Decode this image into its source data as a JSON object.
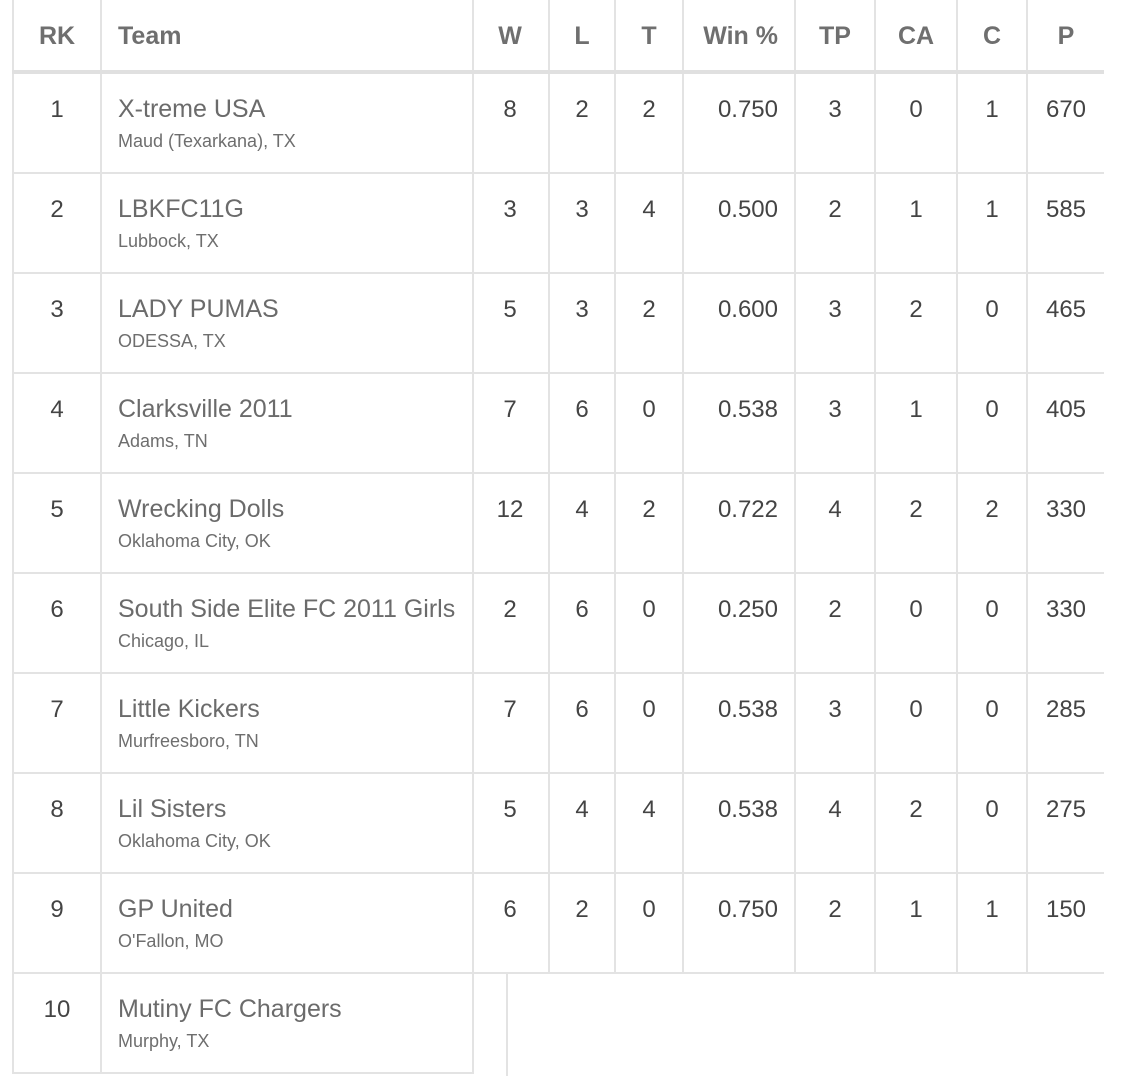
{
  "headers": {
    "rank": "RK",
    "team": "Team",
    "w": "W",
    "l": "L",
    "t": "T",
    "win_pct": "Win %",
    "tp": "TP",
    "ca": "CA",
    "c": "C",
    "p": "P"
  },
  "rows": [
    {
      "rank": "1",
      "name": "X-treme USA",
      "location": "Maud (Texarkana), TX",
      "w": "8",
      "l": "2",
      "t": "2",
      "win_pct": "0.750",
      "tp": "3",
      "ca": "0",
      "c": "1",
      "p": "670"
    },
    {
      "rank": "2",
      "name": "LBKFC11G",
      "location": "Lubbock, TX",
      "w": "3",
      "l": "3",
      "t": "4",
      "win_pct": "0.500",
      "tp": "2",
      "ca": "1",
      "c": "1",
      "p": "585"
    },
    {
      "rank": "3",
      "name": "LADY PUMAS",
      "location": "ODESSA, TX",
      "w": "5",
      "l": "3",
      "t": "2",
      "win_pct": "0.600",
      "tp": "3",
      "ca": "2",
      "c": "0",
      "p": "465"
    },
    {
      "rank": "4",
      "name": "Clarksville 2011",
      "location": "Adams, TN",
      "w": "7",
      "l": "6",
      "t": "0",
      "win_pct": "0.538",
      "tp": "3",
      "ca": "1",
      "c": "0",
      "p": "405"
    },
    {
      "rank": "5",
      "name": "Wrecking Dolls",
      "location": "Oklahoma City, OK",
      "w": "12",
      "l": "4",
      "t": "2",
      "win_pct": "0.722",
      "tp": "4",
      "ca": "2",
      "c": "2",
      "p": "330"
    },
    {
      "rank": "6",
      "name": "South Side Elite FC 2011 Girls",
      "location": "Chicago, IL",
      "w": "2",
      "l": "6",
      "t": "0",
      "win_pct": "0.250",
      "tp": "2",
      "ca": "0",
      "c": "0",
      "p": "330"
    },
    {
      "rank": "7",
      "name": "Little Kickers",
      "location": "Murfreesboro, TN",
      "w": "7",
      "l": "6",
      "t": "0",
      "win_pct": "0.538",
      "tp": "3",
      "ca": "0",
      "c": "0",
      "p": "285"
    },
    {
      "rank": "8",
      "name": "Lil Sisters",
      "location": "Oklahoma City, OK",
      "w": "5",
      "l": "4",
      "t": "4",
      "win_pct": "0.538",
      "tp": "4",
      "ca": "2",
      "c": "0",
      "p": "275"
    },
    {
      "rank": "9",
      "name": "GP United",
      "location": "O'Fallon, MO",
      "w": "6",
      "l": "2",
      "t": "0",
      "win_pct": "0.750",
      "tp": "2",
      "ca": "1",
      "c": "1",
      "p": "150"
    },
    {
      "rank": "10",
      "name": "Mutiny FC Chargers",
      "location": "Murphy, TX",
      "w": "",
      "l": "",
      "t": "",
      "win_pct": "",
      "tp": "",
      "ca": "",
      "c": "",
      "p": ""
    }
  ]
}
